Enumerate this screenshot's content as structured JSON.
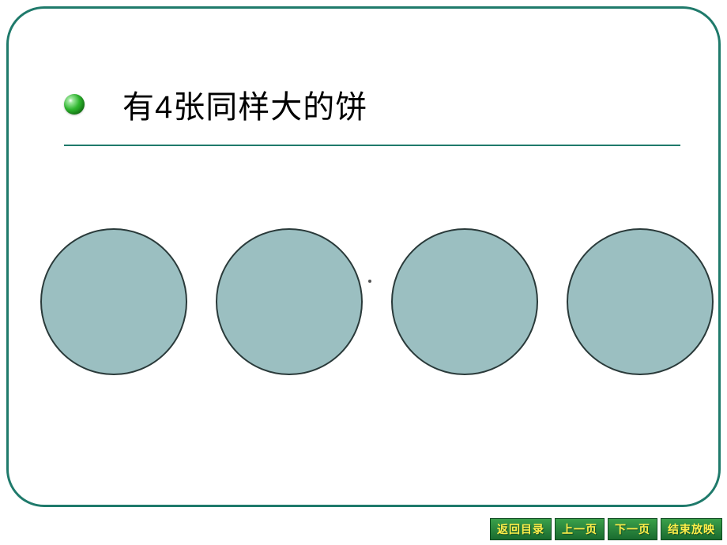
{
  "slide": {
    "title": "有4张同样大的饼",
    "frame_border_color": "#1f7a6b",
    "frame_border_radius": 48,
    "bullet": {
      "type": "sphere",
      "color_light": "#9ee89e",
      "color_dark": "#0a6b0a"
    },
    "underline_color": "#1f7a6b",
    "circles": {
      "count": 4,
      "fill_color": "#9bbfc1",
      "stroke_color": "#2a3a3a",
      "diameter": 186
    }
  },
  "nav": {
    "return_toc": "返回目录",
    "prev": "上一页",
    "next": "下一页",
    "end_show": "结束放映",
    "bg_color": "#1a6b2f",
    "text_color": "#ffef4a"
  }
}
